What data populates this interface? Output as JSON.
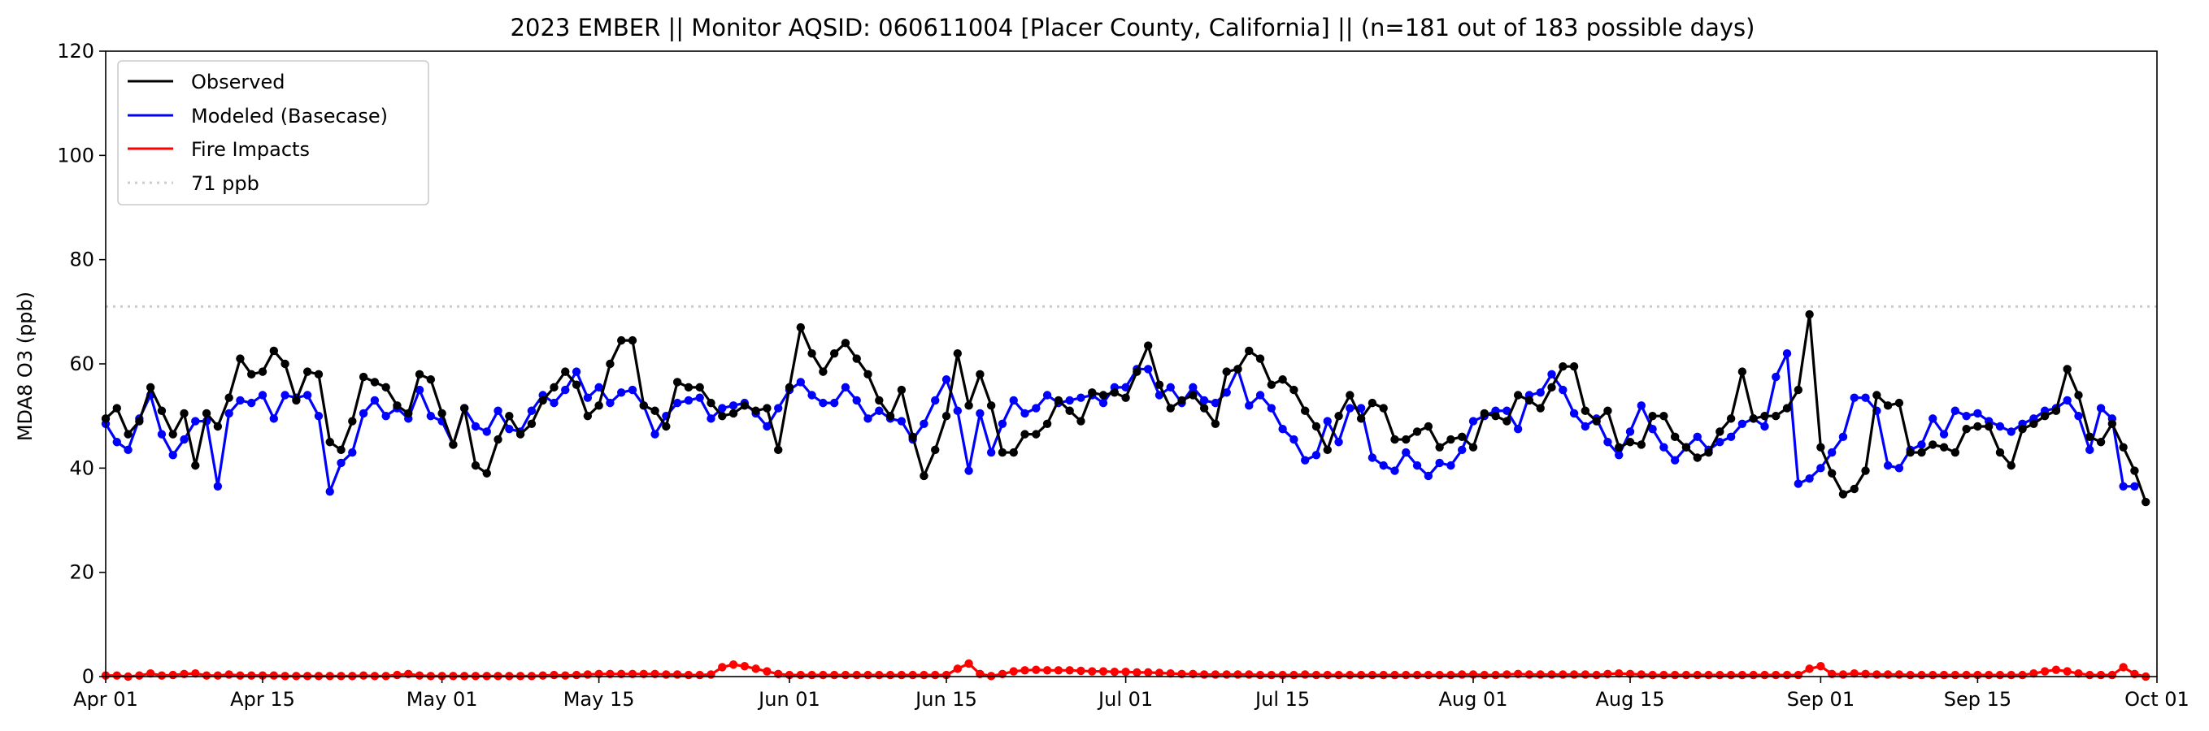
{
  "chart_data": {
    "type": "line",
    "title": "2023 EMBER || Monitor AQSID: 060611004 [Placer County, California] || (n=181 out of 183 possible days)",
    "xlabel": "",
    "ylabel": "MDA8 O3 (ppb)",
    "ylim": [
      0,
      120
    ],
    "yticks": [
      0,
      20,
      40,
      60,
      80,
      100,
      120
    ],
    "xlim": [
      "2023-04-01",
      "2023-10-01"
    ],
    "xticks": [
      {
        "date": "2023-04-01",
        "label": "Apr 01"
      },
      {
        "date": "2023-04-15",
        "label": "Apr 15"
      },
      {
        "date": "2023-05-01",
        "label": "May 01"
      },
      {
        "date": "2023-05-15",
        "label": "May 15"
      },
      {
        "date": "2023-06-01",
        "label": "Jun 01"
      },
      {
        "date": "2023-06-15",
        "label": "Jun 15"
      },
      {
        "date": "2023-07-01",
        "label": "Jul 01"
      },
      {
        "date": "2023-07-15",
        "label": "Jul 15"
      },
      {
        "date": "2023-08-01",
        "label": "Aug 01"
      },
      {
        "date": "2023-08-15",
        "label": "Aug 15"
      },
      {
        "date": "2023-09-01",
        "label": "Sep 01"
      },
      {
        "date": "2023-09-15",
        "label": "Sep 15"
      },
      {
        "date": "2023-10-01",
        "label": "Oct 01"
      }
    ],
    "legend_position": "top-left",
    "threshold": {
      "name": "71 ppb",
      "value": 71,
      "color": "#cccccc"
    },
    "series": [
      {
        "name": "Observed",
        "color": "#000000",
        "start_date": "2023-04-01",
        "values": [
          49.5,
          51.5,
          46.5,
          49,
          55.5,
          51,
          46.5,
          50.5,
          40.5,
          50.5,
          48,
          53.5,
          61,
          58,
          58.5,
          62.5,
          60,
          53,
          58.5,
          58,
          45,
          43.5,
          49,
          57.5,
          56.5,
          55.5,
          52,
          50.5,
          58,
          57,
          50.5,
          44.5,
          51.5,
          40.5,
          39,
          45.5,
          50,
          46.5,
          48.5,
          53,
          55.5,
          58.5,
          56,
          50,
          52,
          60,
          64.5,
          64.5,
          52,
          51,
          48,
          56.5,
          55.5,
          55.5,
          52.5,
          50,
          50.5,
          52,
          51,
          51.5,
          43.5,
          55.5,
          67,
          62,
          58.5,
          62,
          64,
          61,
          58,
          53,
          50,
          55,
          46,
          38.5,
          43.5,
          50,
          62,
          52,
          58,
          52,
          43,
          43,
          46.5,
          46.5,
          48.5,
          53,
          51,
          49,
          54.5,
          54,
          54.5,
          53.5,
          58.5,
          63.5,
          56,
          51.5,
          53,
          54,
          51.5,
          48.5,
          58.5,
          59,
          62.5,
          61,
          56,
          57,
          55,
          51,
          48,
          43.5,
          50,
          54,
          49.5,
          52.5,
          51.5,
          45.5,
          45.5,
          47,
          48,
          44,
          45.5,
          46,
          44,
          50.5,
          50,
          49,
          54,
          53,
          51.5,
          55.5,
          59.5,
          59.5,
          51,
          49,
          51,
          44,
          45,
          44.5,
          50,
          50,
          46,
          44,
          42,
          43,
          47,
          49.5,
          58.5,
          49.5,
          50,
          50,
          51.5,
          55,
          69.5,
          44,
          39,
          35,
          36,
          39.5,
          54,
          52,
          52.5,
          43,
          43,
          44.5,
          44,
          43,
          47.5,
          48,
          48,
          43,
          40.5,
          47.5,
          48.5,
          50,
          51,
          59,
          54,
          46,
          45,
          48.5,
          44,
          39.5,
          33.5
        ]
      },
      {
        "name": "Modeled (Basecase)",
        "color": "#0000ff",
        "start_date": "2023-04-01",
        "values": [
          48.5,
          45,
          43.5,
          49.5,
          54,
          46.5,
          42.5,
          45.5,
          49,
          49,
          36.5,
          50.5,
          53,
          52.5,
          54,
          49.5,
          54,
          53.5,
          54,
          50,
          35.5,
          41,
          43,
          50.5,
          53,
          50,
          51.5,
          49.5,
          55,
          50,
          49,
          44.5,
          51.5,
          48,
          47,
          51,
          47.5,
          47,
          51,
          54,
          52.5,
          55,
          58.5,
          53.5,
          55.5,
          52.5,
          54.5,
          55,
          52,
          46.5,
          50,
          52.5,
          53,
          53.5,
          49.5,
          51.5,
          52,
          52.5,
          50.5,
          48,
          51.5,
          55,
          56.5,
          54,
          52.5,
          52.5,
          55.5,
          53,
          49.5,
          51,
          49.5,
          49,
          45.5,
          48.5,
          53,
          57,
          51,
          39.5,
          50.5,
          43,
          48.5,
          53,
          50.5,
          51.5,
          54,
          52.5,
          53,
          53.5,
          54,
          52.5,
          55.5,
          55.5,
          59,
          59,
          54,
          55.5,
          52.5,
          55.5,
          53,
          52.5,
          54.5,
          59,
          52,
          54,
          51.5,
          47.5,
          45.5,
          41.5,
          42.5,
          49,
          45,
          51.5,
          51.5,
          42,
          40.5,
          39.5,
          43,
          40.5,
          38.5,
          41,
          40.5,
          43.5,
          49,
          50,
          51,
          51,
          47.5,
          54,
          54.5,
          58,
          55,
          50.5,
          48,
          49.5,
          45,
          42.5,
          47,
          52,
          47.5,
          44,
          41.5,
          44,
          46,
          43.5,
          45,
          46,
          48.5,
          49.5,
          48,
          57.5,
          62,
          37,
          38,
          40,
          43,
          46,
          53.5,
          53.5,
          51,
          40.5,
          40,
          43.5,
          44.5,
          49.5,
          46.5,
          51,
          50,
          50.5,
          49,
          48,
          47,
          48.5,
          49.5,
          51,
          51.5,
          53,
          50,
          43.5,
          51.5,
          49.5,
          36.5,
          36.5
        ]
      },
      {
        "name": "Fire Impacts",
        "color": "#ff0000",
        "start_date": "2023-04-01",
        "values": [
          0.2,
          0.2,
          0,
          0.2,
          0.6,
          0.2,
          0.3,
          0.5,
          0.6,
          0.2,
          0.2,
          0.4,
          0.2,
          0.2,
          0.2,
          0.2,
          0.1,
          0.1,
          0.1,
          0.1,
          0.1,
          0.1,
          0.1,
          0.2,
          0.1,
          0.1,
          0.3,
          0.5,
          0.2,
          0.1,
          0.1,
          0.1,
          0.1,
          0.1,
          0.1,
          0.1,
          0.1,
          0.1,
          0.1,
          0.2,
          0.3,
          0.2,
          0.3,
          0.4,
          0.5,
          0.5,
          0.5,
          0.5,
          0.5,
          0.5,
          0.4,
          0.4,
          0.3,
          0.3,
          0.4,
          1.8,
          2.3,
          2,
          1.5,
          1,
          0.5,
          0.3,
          0.3,
          0.3,
          0.3,
          0.3,
          0.3,
          0.3,
          0.3,
          0.3,
          0.3,
          0.3,
          0.3,
          0.3,
          0.3,
          0.3,
          1.5,
          2.5,
          0.5,
          0.1,
          0.5,
          1,
          1.2,
          1.3,
          1.2,
          1.2,
          1.2,
          1.1,
          1,
          1,
          0.9,
          0.9,
          0.8,
          0.8,
          0.7,
          0.6,
          0.5,
          0.5,
          0.4,
          0.4,
          0.4,
          0.4,
          0.4,
          0.3,
          0.3,
          0.3,
          0.3,
          0.4,
          0.3,
          0.3,
          0.3,
          0.3,
          0.3,
          0.3,
          0.3,
          0.3,
          0.3,
          0.3,
          0.3,
          0.3,
          0.3,
          0.4,
          0.4,
          0.3,
          0.3,
          0.4,
          0.5,
          0.4,
          0.4,
          0.4,
          0.4,
          0.4,
          0.4,
          0.3,
          0.5,
          0.6,
          0.5,
          0.4,
          0.3,
          0.3,
          0.3,
          0.3,
          0.3,
          0.3,
          0.3,
          0.3,
          0.3,
          0.3,
          0.3,
          0.3,
          0.3,
          0.3,
          1.5,
          2,
          0.5,
          0.4,
          0.6,
          0.5,
          0.4,
          0.4,
          0.4,
          0.3,
          0.3,
          0.3,
          0.3,
          0.3,
          0.3,
          0.3,
          0.3,
          0.3,
          0.3,
          0.3,
          0.6,
          1,
          1.3,
          1,
          0.6,
          0.3,
          0.3,
          0.3,
          1.8,
          0.5,
          0
        ]
      }
    ]
  }
}
